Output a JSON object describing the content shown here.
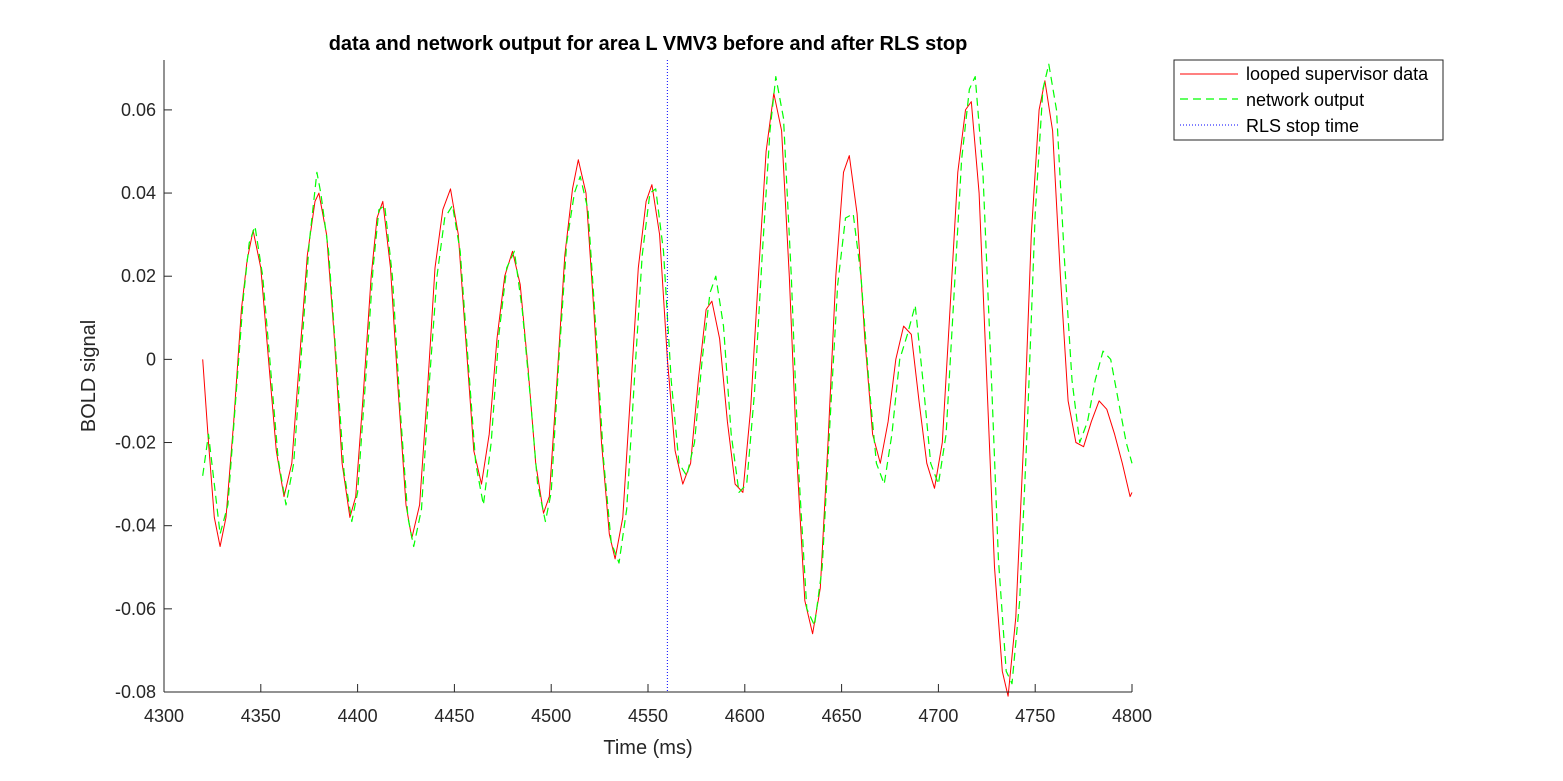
{
  "chart_data": {
    "type": "line",
    "title": "data and network output for area L VMV3 before and after RLS stop",
    "xlabel": "Time (ms)",
    "ylabel": "BOLD signal",
    "xlim": [
      4300,
      4800
    ],
    "ylim": [
      -0.08,
      0.072
    ],
    "xticks": [
      4300,
      4350,
      4400,
      4450,
      4500,
      4550,
      4600,
      4650,
      4700,
      4750,
      4800
    ],
    "xtick_labels": [
      "4300",
      "4350",
      "4400",
      "4450",
      "4500",
      "4550",
      "4600",
      "4650",
      "4700",
      "4750",
      "4800"
    ],
    "yticks": [
      -0.08,
      -0.06,
      -0.04,
      -0.02,
      0,
      0.02,
      0.04,
      0.06
    ],
    "ytick_labels": [
      "-0.08",
      "-0.06",
      "-0.04",
      "-0.02",
      "0",
      "0.02",
      "0.04",
      "0.06"
    ],
    "grid": false,
    "legend": "outside-top-right",
    "rls_stop_time": 4560,
    "series": [
      {
        "name": "looped supervisor data",
        "color": "#ff0000",
        "style": "solid",
        "points": [
          [
            4320,
            0.0
          ],
          [
            4323,
            -0.02
          ],
          [
            4326,
            -0.038
          ],
          [
            4329,
            -0.045
          ],
          [
            4332,
            -0.038
          ],
          [
            4336,
            -0.015
          ],
          [
            4340,
            0.012
          ],
          [
            4343,
            0.024
          ],
          [
            4346,
            0.031
          ],
          [
            4350,
            0.022
          ],
          [
            4354,
            0.0
          ],
          [
            4358,
            -0.022
          ],
          [
            4362,
            -0.033
          ],
          [
            4366,
            -0.025
          ],
          [
            4370,
            0.0
          ],
          [
            4374,
            0.025
          ],
          [
            4378,
            0.038
          ],
          [
            4380,
            0.04
          ],
          [
            4384,
            0.03
          ],
          [
            4388,
            0.005
          ],
          [
            4392,
            -0.025
          ],
          [
            4396,
            -0.038
          ],
          [
            4399,
            -0.033
          ],
          [
            4403,
            -0.008
          ],
          [
            4407,
            0.02
          ],
          [
            4410,
            0.034
          ],
          [
            4413,
            0.038
          ],
          [
            4417,
            0.022
          ],
          [
            4421,
            -0.008
          ],
          [
            4425,
            -0.035
          ],
          [
            4428,
            -0.043
          ],
          [
            4432,
            -0.035
          ],
          [
            4436,
            -0.008
          ],
          [
            4440,
            0.022
          ],
          [
            4444,
            0.036
          ],
          [
            4448,
            0.041
          ],
          [
            4452,
            0.03
          ],
          [
            4456,
            0.004
          ],
          [
            4460,
            -0.022
          ],
          [
            4464,
            -0.03
          ],
          [
            4468,
            -0.018
          ],
          [
            4472,
            0.005
          ],
          [
            4476,
            0.02
          ],
          [
            4480,
            0.026
          ],
          [
            4484,
            0.018
          ],
          [
            4488,
            -0.002
          ],
          [
            4492,
            -0.025
          ],
          [
            4496,
            -0.037
          ],
          [
            4499,
            -0.033
          ],
          [
            4503,
            -0.005
          ],
          [
            4507,
            0.025
          ],
          [
            4511,
            0.041
          ],
          [
            4514,
            0.048
          ],
          [
            4518,
            0.04
          ],
          [
            4522,
            0.012
          ],
          [
            4526,
            -0.02
          ],
          [
            4530,
            -0.042
          ],
          [
            4533,
            -0.048
          ],
          [
            4537,
            -0.038
          ],
          [
            4541,
            -0.008
          ],
          [
            4545,
            0.022
          ],
          [
            4549,
            0.038
          ],
          [
            4552,
            0.042
          ],
          [
            4556,
            0.03
          ],
          [
            4560,
            0.0
          ],
          [
            4564,
            -0.022
          ],
          [
            4568,
            -0.03
          ],
          [
            4572,
            -0.025
          ],
          [
            4576,
            -0.005
          ],
          [
            4580,
            0.012
          ],
          [
            4583,
            0.014
          ],
          [
            4587,
            0.005
          ],
          [
            4591,
            -0.015
          ],
          [
            4595,
            -0.03
          ],
          [
            4599,
            -0.032
          ],
          [
            4603,
            -0.012
          ],
          [
            4607,
            0.02
          ],
          [
            4611,
            0.05
          ],
          [
            4615,
            0.064
          ],
          [
            4619,
            0.055
          ],
          [
            4623,
            0.02
          ],
          [
            4627,
            -0.025
          ],
          [
            4631,
            -0.058
          ],
          [
            4635,
            -0.066
          ],
          [
            4639,
            -0.055
          ],
          [
            4643,
            -0.02
          ],
          [
            4647,
            0.02
          ],
          [
            4651,
            0.045
          ],
          [
            4654,
            0.049
          ],
          [
            4658,
            0.035
          ],
          [
            4662,
            0.005
          ],
          [
            4666,
            -0.018
          ],
          [
            4670,
            -0.025
          ],
          [
            4674,
            -0.015
          ],
          [
            4678,
            0.0
          ],
          [
            4682,
            0.008
          ],
          [
            4686,
            0.006
          ],
          [
            4690,
            -0.01
          ],
          [
            4694,
            -0.025
          ],
          [
            4698,
            -0.031
          ],
          [
            4702,
            -0.02
          ],
          [
            4706,
            0.012
          ],
          [
            4710,
            0.045
          ],
          [
            4714,
            0.06
          ],
          [
            4717,
            0.062
          ],
          [
            4721,
            0.04
          ],
          [
            4725,
            -0.005
          ],
          [
            4729,
            -0.05
          ],
          [
            4733,
            -0.075
          ],
          [
            4736,
            -0.081
          ],
          [
            4740,
            -0.062
          ],
          [
            4744,
            -0.02
          ],
          [
            4748,
            0.03
          ],
          [
            4752,
            0.06
          ],
          [
            4755,
            0.067
          ],
          [
            4759,
            0.055
          ],
          [
            4763,
            0.02
          ],
          [
            4767,
            -0.01
          ],
          [
            4771,
            -0.02
          ],
          [
            4775,
            -0.021
          ],
          [
            4779,
            -0.015
          ],
          [
            4783,
            -0.01
          ],
          [
            4787,
            -0.012
          ],
          [
            4791,
            -0.018
          ],
          [
            4795,
            -0.025
          ],
          [
            4799,
            -0.033
          ],
          [
            4800,
            -0.032
          ]
        ]
      },
      {
        "name": "network output",
        "color": "#00ff00",
        "style": "dashed",
        "points": [
          [
            4320,
            -0.028
          ],
          [
            4323,
            -0.018
          ],
          [
            4326,
            -0.03
          ],
          [
            4329,
            -0.042
          ],
          [
            4333,
            -0.035
          ],
          [
            4337,
            -0.01
          ],
          [
            4341,
            0.015
          ],
          [
            4344,
            0.028
          ],
          [
            4347,
            0.032
          ],
          [
            4351,
            0.02
          ],
          [
            4355,
            -0.002
          ],
          [
            4359,
            -0.024
          ],
          [
            4363,
            -0.035
          ],
          [
            4367,
            -0.025
          ],
          [
            4371,
            0.002
          ],
          [
            4375,
            0.028
          ],
          [
            4379,
            0.045
          ],
          [
            4381,
            0.04
          ],
          [
            4385,
            0.026
          ],
          [
            4389,
            0.0
          ],
          [
            4393,
            -0.027
          ],
          [
            4397,
            -0.039
          ],
          [
            4400,
            -0.032
          ],
          [
            4404,
            -0.006
          ],
          [
            4408,
            0.022
          ],
          [
            4411,
            0.036
          ],
          [
            4414,
            0.037
          ],
          [
            4418,
            0.02
          ],
          [
            4422,
            -0.012
          ],
          [
            4426,
            -0.038
          ],
          [
            4429,
            -0.045
          ],
          [
            4433,
            -0.036
          ],
          [
            4437,
            -0.006
          ],
          [
            4441,
            0.02
          ],
          [
            4445,
            0.034
          ],
          [
            4449,
            0.037
          ],
          [
            4453,
            0.026
          ],
          [
            4457,
            0.0
          ],
          [
            4461,
            -0.025
          ],
          [
            4465,
            -0.035
          ],
          [
            4469,
            -0.02
          ],
          [
            4473,
            0.006
          ],
          [
            4477,
            0.022
          ],
          [
            4481,
            0.026
          ],
          [
            4485,
            0.012
          ],
          [
            4489,
            -0.008
          ],
          [
            4493,
            -0.03
          ],
          [
            4497,
            -0.039
          ],
          [
            4500,
            -0.032
          ],
          [
            4504,
            0.0
          ],
          [
            4508,
            0.028
          ],
          [
            4512,
            0.04
          ],
          [
            4515,
            0.044
          ],
          [
            4519,
            0.036
          ],
          [
            4523,
            0.008
          ],
          [
            4527,
            -0.024
          ],
          [
            4531,
            -0.044
          ],
          [
            4535,
            -0.049
          ],
          [
            4539,
            -0.036
          ],
          [
            4543,
            -0.005
          ],
          [
            4547,
            0.025
          ],
          [
            4551,
            0.04
          ],
          [
            4554,
            0.041
          ],
          [
            4558,
            0.026
          ],
          [
            4562,
            -0.005
          ],
          [
            4566,
            -0.025
          ],
          [
            4570,
            -0.028
          ],
          [
            4574,
            -0.02
          ],
          [
            4578,
            0.0
          ],
          [
            4582,
            0.016
          ],
          [
            4585,
            0.02
          ],
          [
            4589,
            0.008
          ],
          [
            4593,
            -0.018
          ],
          [
            4597,
            -0.032
          ],
          [
            4601,
            -0.03
          ],
          [
            4605,
            -0.008
          ],
          [
            4609,
            0.025
          ],
          [
            4613,
            0.055
          ],
          [
            4616,
            0.068
          ],
          [
            4620,
            0.058
          ],
          [
            4624,
            0.02
          ],
          [
            4628,
            -0.028
          ],
          [
            4632,
            -0.06
          ],
          [
            4636,
            -0.064
          ],
          [
            4640,
            -0.05
          ],
          [
            4644,
            -0.015
          ],
          [
            4648,
            0.018
          ],
          [
            4652,
            0.034
          ],
          [
            4656,
            0.035
          ],
          [
            4660,
            0.02
          ],
          [
            4664,
            -0.005
          ],
          [
            4668,
            -0.025
          ],
          [
            4672,
            -0.03
          ],
          [
            4676,
            -0.018
          ],
          [
            4680,
            0.0
          ],
          [
            4684,
            0.006
          ],
          [
            4688,
            0.013
          ],
          [
            4692,
            -0.005
          ],
          [
            4696,
            -0.025
          ],
          [
            4700,
            -0.03
          ],
          [
            4704,
            -0.018
          ],
          [
            4708,
            0.015
          ],
          [
            4712,
            0.048
          ],
          [
            4716,
            0.065
          ],
          [
            4719,
            0.068
          ],
          [
            4723,
            0.045
          ],
          [
            4727,
            0.0
          ],
          [
            4731,
            -0.048
          ],
          [
            4735,
            -0.075
          ],
          [
            4738,
            -0.078
          ],
          [
            4742,
            -0.058
          ],
          [
            4746,
            -0.015
          ],
          [
            4750,
            0.035
          ],
          [
            4754,
            0.065
          ],
          [
            4757,
            0.071
          ],
          [
            4761,
            0.06
          ],
          [
            4765,
            0.025
          ],
          [
            4769,
            -0.005
          ],
          [
            4773,
            -0.02
          ],
          [
            4777,
            -0.015
          ],
          [
            4781,
            -0.005
          ],
          [
            4785,
            0.002
          ],
          [
            4789,
            0.0
          ],
          [
            4793,
            -0.01
          ],
          [
            4797,
            -0.02
          ],
          [
            4800,
            -0.025
          ]
        ]
      }
    ],
    "vline": {
      "name": "RLS stop time",
      "color": "#0000ff",
      "style": "dotted"
    }
  }
}
